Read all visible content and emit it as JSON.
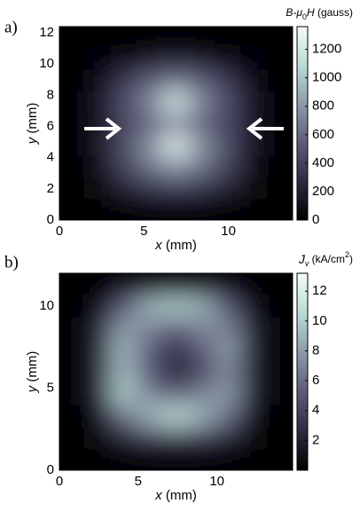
{
  "chart_data": [
    {
      "type": "heatmap",
      "label": "a)",
      "xlabel": [
        "x",
        " (mm)"
      ],
      "ylabel": [
        "y",
        " (mm)"
      ],
      "xlim": [
        0,
        13.8
      ],
      "ylim": [
        0,
        12.4
      ],
      "xticks": [
        0,
        5,
        10
      ],
      "yticks": [
        0,
        2,
        4,
        6,
        8,
        10,
        12
      ],
      "z": [
        [
          0,
          0,
          0,
          0,
          0,
          0,
          0,
          0,
          0
        ],
        [
          0,
          50,
          200,
          300,
          350,
          300,
          200,
          50,
          0
        ],
        [
          0,
          100,
          400,
          650,
          800,
          650,
          400,
          100,
          0
        ],
        [
          0,
          150,
          450,
          800,
          1300,
          800,
          450,
          150,
          0
        ],
        [
          0,
          150,
          400,
          550,
          700,
          550,
          400,
          150,
          0
        ],
        [
          0,
          150,
          450,
          750,
          1250,
          750,
          450,
          150,
          0
        ],
        [
          0,
          100,
          350,
          550,
          650,
          550,
          350,
          100,
          0
        ],
        [
          0,
          30,
          100,
          150,
          200,
          150,
          100,
          30,
          0
        ],
        [
          0,
          0,
          0,
          0,
          0,
          0,
          0,
          0,
          0
        ]
      ],
      "colormap": [
        "#000000",
        "#2e2b42",
        "#5d5c7a",
        "#8c9aa8",
        "#b9dcd6",
        "#f4fcfb"
      ],
      "clim": [
        0,
        1360
      ],
      "cticks": [
        0,
        200,
        400,
        600,
        800,
        1000,
        1200
      ],
      "colorbar_label": [
        "B-μ",
        "0",
        "H",
        " (gauss)"
      ]
    },
    {
      "type": "heatmap",
      "label": "b)",
      "xlabel": [
        "x",
        " (mm)"
      ],
      "ylabel": [
        "y",
        " (mm)"
      ],
      "xlim": [
        0,
        14.8
      ],
      "ylim": [
        0,
        12
      ],
      "xticks": [
        0,
        5,
        10
      ],
      "yticks": [
        0,
        5,
        10
      ],
      "z": [
        [
          0,
          0,
          0,
          0,
          0,
          0,
          0,
          0,
          0
        ],
        [
          0,
          0.5,
          2,
          3,
          3,
          3,
          2,
          0.5,
          0
        ],
        [
          0,
          1,
          6,
          9,
          11,
          9,
          6,
          1,
          0
        ],
        [
          0,
          2,
          10,
          7,
          5,
          7,
          8,
          2,
          0
        ],
        [
          0,
          2,
          9,
          5,
          2,
          4,
          7,
          2,
          0
        ],
        [
          0,
          2,
          9,
          5,
          3,
          5,
          8,
          2,
          0
        ],
        [
          0,
          2,
          8,
          7,
          5,
          7,
          7,
          2,
          0
        ],
        [
          0,
          1,
          5,
          9,
          10,
          9,
          5,
          1,
          0
        ],
        [
          0,
          0,
          1,
          1,
          1,
          1,
          1,
          0,
          0
        ]
      ],
      "colormap": [
        "#000000",
        "#2e2b42",
        "#5d5c7a",
        "#8c9aa8",
        "#b9dcd6",
        "#f4fcfb"
      ],
      "clim": [
        0,
        13.2
      ],
      "cticks": [
        2,
        4,
        6,
        8,
        10,
        12
      ],
      "colorbar_label": [
        "J",
        "v",
        " (kA/cm",
        "2",
        ")"
      ]
    }
  ]
}
